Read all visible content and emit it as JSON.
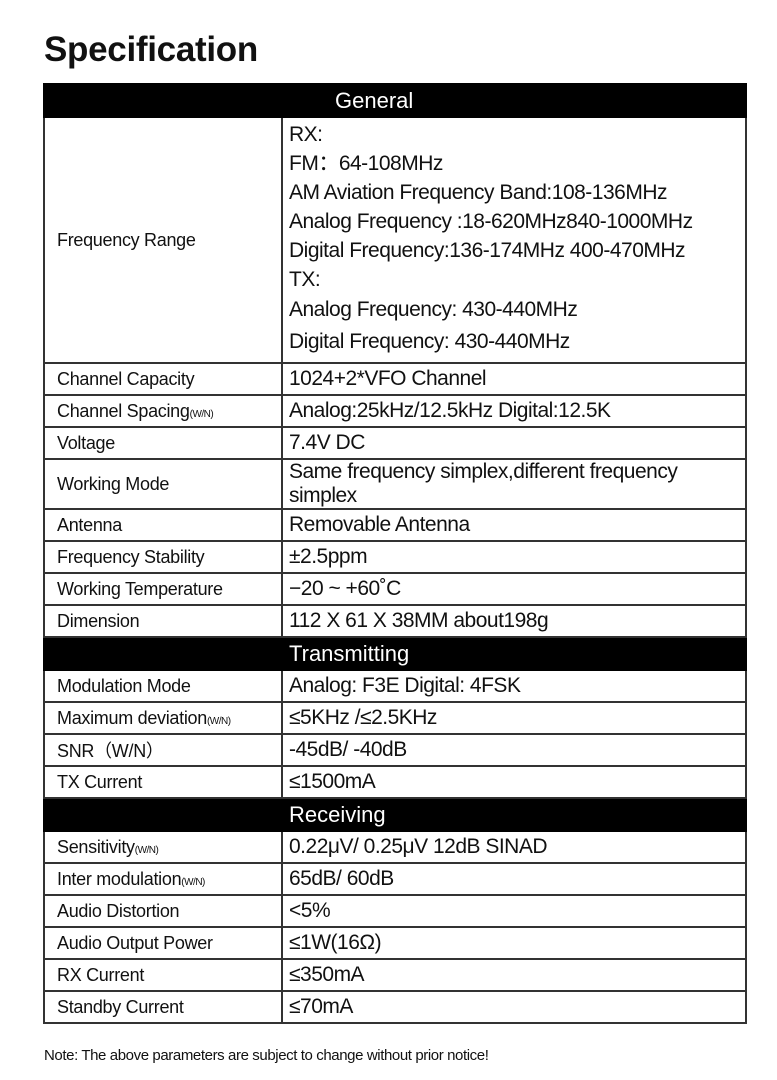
{
  "title": "Specification",
  "sections": {
    "general": "General",
    "transmitting": "Transmitting",
    "receiving": "Receiving"
  },
  "frequency_range": {
    "label": "Frequency Range",
    "lines": [
      "RX:",
      "FM：64-108MHz",
      "AM Aviation Frequency Band:108-136MHz",
      "Analog Frequency :18-620MHz840-1000MHz",
      "Digital Frequency:136-174MHz  400-470MHz",
      "TX:",
      "Analog Frequency: 430-440MHz",
      "Digital Frequency: 430-440MHz"
    ]
  },
  "general_rows": [
    {
      "label": "Channel Capacity",
      "suffix": "",
      "value": "1024+2*VFO Channel"
    },
    {
      "label": "Channel Spacing",
      "suffix": "(W/N)",
      "value": "Analog:25kHz/12.5kHz  Digital:12.5K"
    },
    {
      "label": "Voltage",
      "suffix": "",
      "value": "7.4V DC"
    },
    {
      "label": "Working Mode",
      "suffix": "",
      "value": "Same frequency simplex,different frequency simplex"
    },
    {
      "label": "Antenna",
      "suffix": "",
      "value": "Removable Antenna"
    },
    {
      "label": "Frequency Stability",
      "suffix": "",
      "value": "±2.5ppm"
    },
    {
      "label": "Working Temperature",
      "suffix": "",
      "value": "−20 ~ +60˚C"
    },
    {
      "label": "Dimension",
      "suffix": "",
      "value": "112 X 61 X 38MM   about198g"
    }
  ],
  "transmitting_rows": [
    {
      "label": "Modulation Mode",
      "suffix": "",
      "value": "Analog:  F3E  Digital:  4FSK"
    },
    {
      "label": "Maximum deviation",
      "suffix": "(W/N)",
      "value": "≤5KHz /≤2.5KHz"
    },
    {
      "label": "SNR（W/N）",
      "suffix": "",
      "value": "-45dB/ -40dB"
    },
    {
      "label": "TX Current",
      "suffix": "",
      "value": "≤1500mA"
    }
  ],
  "receiving_rows": [
    {
      "label": "Sensitivity",
      "suffix": "(W/N)",
      "value": "0.22μV/ 0.25μV     12dB SINAD"
    },
    {
      "label": "Inter modulation",
      "suffix": "(W/N)",
      "value": "65dB/ 60dB"
    },
    {
      "label": "Audio Distortion",
      "suffix": "",
      "value": "<5%"
    },
    {
      "label": "Audio Output Power",
      "suffix": "",
      "value": "≤1W(16Ω)"
    },
    {
      "label": "RX Current",
      "suffix": "",
      "value": "≤350mA"
    },
    {
      "label": "Standby Current",
      "suffix": "",
      "value": "≤70mA"
    }
  ],
  "note": "Note: The above parameters are subject to change without prior notice!"
}
